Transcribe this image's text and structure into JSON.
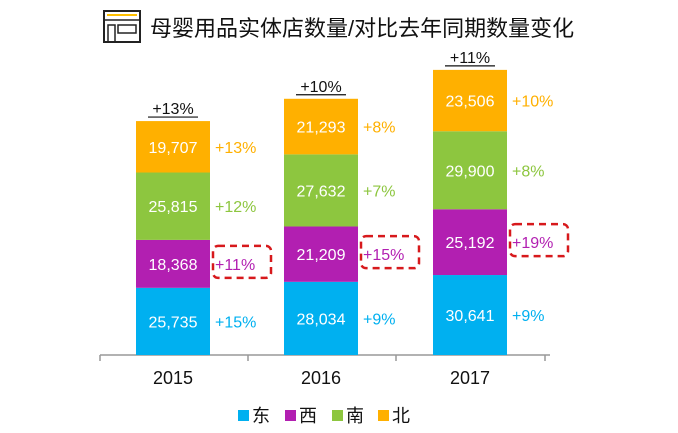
{
  "title": "母婴用品实体店数量/对比去年同期数量变化",
  "icon": "storefront-icon",
  "chart_data": {
    "type": "bar",
    "stacked": true,
    "title": "母婴用品实体店数量/对比去年同期数量变化",
    "categories": [
      "2015",
      "2016",
      "2017"
    ],
    "series": [
      {
        "name": "东",
        "color": "#00b0f0",
        "values": [
          25735,
          28034,
          30641
        ],
        "growth": [
          "+15%",
          "+9%",
          "+9%"
        ]
      },
      {
        "name": "西",
        "color": "#b21fb1",
        "values": [
          18368,
          21209,
          25192
        ],
        "growth": [
          "+11%",
          "+15%",
          "+19%"
        ],
        "highlighted": true
      },
      {
        "name": "南",
        "color": "#8dc63f",
        "values": [
          25815,
          27632,
          29900
        ],
        "growth": [
          "+12%",
          "+7%",
          "+8%"
        ]
      },
      {
        "name": "北",
        "color": "#ffb000",
        "values": [
          19707,
          21293,
          23506
        ],
        "growth": [
          "+13%",
          "+8%",
          "+10%"
        ]
      }
    ],
    "value_labels": [
      [
        "25,735",
        "28,034",
        "30,641"
      ],
      [
        "18,368",
        "21,209",
        "25,192"
      ],
      [
        "25,815",
        "27,632",
        "29,900"
      ],
      [
        "19,707",
        "21,293",
        "23,506"
      ]
    ],
    "total_growth": [
      "+13%",
      "+10%",
      "+11%"
    ],
    "legend": "bottom",
    "grid": false,
    "ylim": [
      0,
      110000
    ],
    "highlight_color": "#d7191c"
  }
}
